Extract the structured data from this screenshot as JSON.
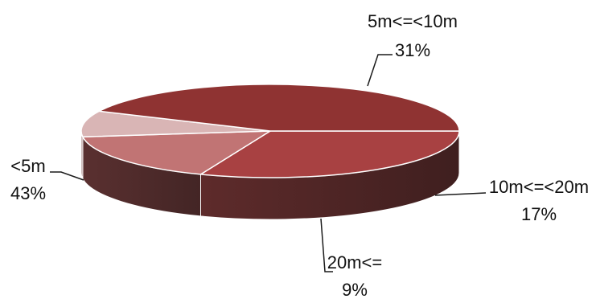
{
  "chart_data": {
    "type": "pie",
    "style": "3d",
    "title": "",
    "slices": [
      {
        "label": "5m<=<10m",
        "value": 31,
        "percent_label": "31%",
        "color": "#a84142"
      },
      {
        "label": "10m<=<20m",
        "value": 17,
        "percent_label": "17%",
        "color": "#c17474"
      },
      {
        "label": "20m<=",
        "value": 9,
        "percent_label": "9%",
        "color": "#d9b5b5"
      },
      {
        "label": "<5m",
        "value": 43,
        "percent_label": "43%",
        "color": "#8f3332"
      }
    ]
  }
}
